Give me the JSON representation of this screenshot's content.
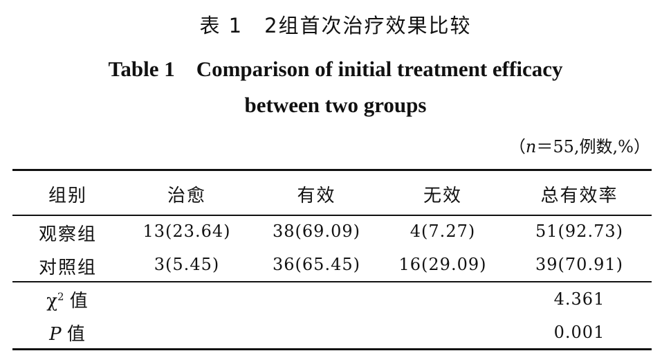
{
  "title_cn": "表 1　2组首次治疗效果比较",
  "title_en_line1": "Table 1　Comparison of initial treatment efficacy",
  "title_en_line2": "between two groups",
  "note": {
    "n_symbol": "n",
    "rest": "＝55,例数,%）",
    "open": "（"
  },
  "headers": [
    "组别",
    "治愈",
    "有效",
    "无效",
    "总有效率"
  ],
  "rows": [
    {
      "group": "观察组",
      "cured": "13(23.64)",
      "effective": "38(69.09)",
      "ineffective": "4(7.27)",
      "total": "51(92.73)"
    },
    {
      "group": "对照组",
      "cured": "3(5.45)",
      "effective": "36(65.45)",
      "ineffective": "16(29.09)",
      "total": "39(70.91)"
    }
  ],
  "stats": [
    {
      "symbol": "χ",
      "sup": "2",
      "label": "值",
      "value": "4.361"
    },
    {
      "symbol": "P",
      "label": "值",
      "value": "0.001"
    }
  ]
}
